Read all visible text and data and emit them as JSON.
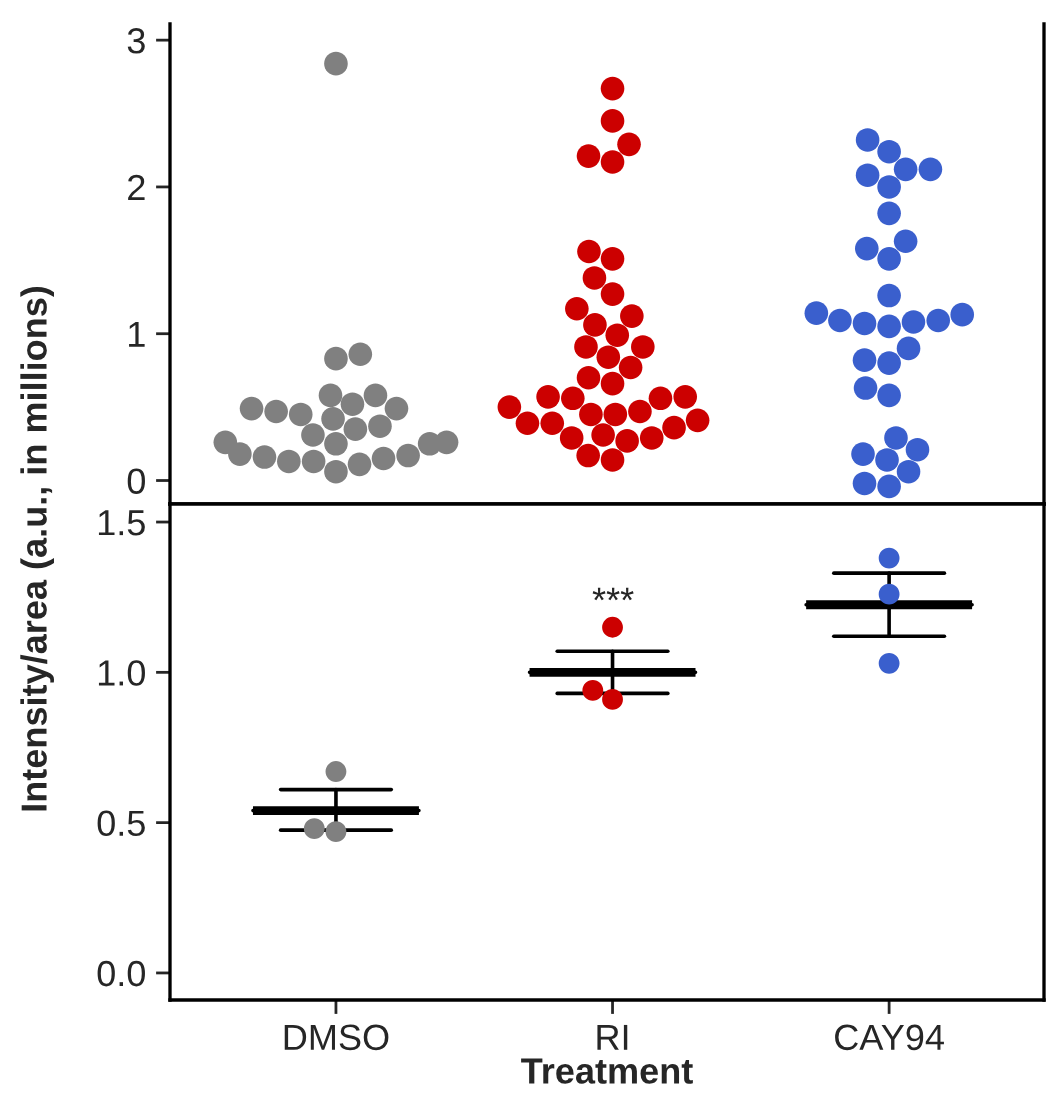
{
  "chart_data": [
    {
      "type": "scatter",
      "ylabel": "Intensity/area (a.u., in millions)",
      "categories": [
        "DMSO",
        "RI",
        "CAY94"
      ],
      "ylim": [
        -0.16,
        3.11
      ],
      "yticks": [
        0,
        1,
        2,
        3
      ],
      "tick_labels": "y",
      "marker": "circle",
      "grid": false,
      "legend": false,
      "series": [
        {
          "color": "#808080",
          "x": [
            "DMSO",
            "DMSO",
            "DMSO",
            "DMSO",
            "DMSO",
            "DMSO",
            "DMSO",
            "DMSO",
            "DMSO",
            "DMSO",
            "DMSO",
            "DMSO",
            "DMSO",
            "DMSO",
            "DMSO",
            "DMSO",
            "DMSO",
            "DMSO",
            "DMSO",
            "DMSO",
            "DMSO",
            "DMSO",
            "DMSO",
            "DMSO",
            "DMSO",
            "DMSO"
          ],
          "values": [
            2.84,
            0.83,
            0.86,
            0.45,
            0.49,
            0.37,
            0.52,
            0.49,
            0.42,
            0.25,
            0.31,
            0.18,
            0.15,
            0.13,
            0.58,
            0.35,
            0.26,
            0.25,
            0.17,
            0.11,
            0.47,
            0.58,
            0.06,
            0.26,
            0.16,
            0.13
          ]
        },
        {
          "color": "#cc0000",
          "x": [
            "RI",
            "RI",
            "RI",
            "RI",
            "RI",
            "RI",
            "RI",
            "RI",
            "RI",
            "RI",
            "RI",
            "RI",
            "RI",
            "RI",
            "RI",
            "RI",
            "RI",
            "RI",
            "RI",
            "RI",
            "RI",
            "RI",
            "RI",
            "RI",
            "RI",
            "RI",
            "RI",
            "RI",
            "RI",
            "RI",
            "RI",
            "RI",
            "RI",
            "RI",
            "RI",
            "RI",
            "RI"
          ],
          "values": [
            2.67,
            2.45,
            2.29,
            2.21,
            2.17,
            1.56,
            1.51,
            1.38,
            1.27,
            1.17,
            1.06,
            1.12,
            0.99,
            0.91,
            0.91,
            0.84,
            0.77,
            0.7,
            0.66,
            0.56,
            0.56,
            0.57,
            0.57,
            0.5,
            0.47,
            0.45,
            0.39,
            0.39,
            0.45,
            0.41,
            0.36,
            0.31,
            0.29,
            0.27,
            0.29,
            0.17,
            0.14
          ]
        },
        {
          "color": "#3a5fcd",
          "x": [
            "CAY94",
            "CAY94",
            "CAY94",
            "CAY94",
            "CAY94",
            "CAY94",
            "CAY94",
            "CAY94",
            "CAY94",
            "CAY94",
            "CAY94",
            "CAY94",
            "CAY94",
            "CAY94",
            "CAY94",
            "CAY94",
            "CAY94",
            "CAY94",
            "CAY94",
            "CAY94",
            "CAY94",
            "CAY94",
            "CAY94",
            "CAY94",
            "CAY94",
            "CAY94",
            "CAY94",
            "CAY94",
            "CAY94",
            "CAY94"
          ],
          "values": [
            2.32,
            2.24,
            2.12,
            2.12,
            2.08,
            2.0,
            1.82,
            1.63,
            1.58,
            1.51,
            1.26,
            1.14,
            1.05,
            1.08,
            1.07,
            1.09,
            1.13,
            1.09,
            0.9,
            0.8,
            0.82,
            0.63,
            0.58,
            0.29,
            0.18,
            0.06,
            -0.04,
            -0.02,
            0.21,
            0.14
          ]
        }
      ]
    },
    {
      "type": "scatter",
      "xlabel": "Treatment",
      "categories": [
        "DMSO",
        "RI",
        "CAY94"
      ],
      "ylim": [
        -0.09,
        1.56
      ],
      "yticks": [
        {
          "value": 0,
          "label": "0.0"
        },
        {
          "value": 0.5,
          "label": "0.5"
        },
        {
          "value": 1,
          "label": "1.0"
        },
        {
          "value": 1.5,
          "label": "1.5"
        }
      ],
      "marker": "circle",
      "grid": false,
      "legend": false,
      "annotations": [
        "***"
      ],
      "series": [
        {
          "color": "#808080",
          "x": [
            "DMSO",
            "DMSO",
            "DMSO"
          ],
          "values": [
            0.67,
            0.47,
            0.48
          ]
        },
        {
          "color": "#cc0000",
          "x": [
            "RI",
            "RI",
            "RI"
          ],
          "values": [
            1.15,
            0.91,
            0.94
          ]
        },
        {
          "color": "#3a5fcd",
          "x": [
            "CAY94",
            "CAY94",
            "CAY94"
          ],
          "values": [
            1.38,
            1.26,
            1.03
          ]
        },
        {
          "type": "box",
          "color": "#000000",
          "boxes": [
            {
              "low": 0.475,
              "q1": 0.54,
              "median": 0.54,
              "q3": 0.54,
              "high": 0.61
            },
            {
              "low": 0.93,
              "q1": 1.0,
              "median": 1.0,
              "q3": 1.0,
              "high": 1.07
            },
            {
              "low": 1.12,
              "q1": 1.225,
              "median": 1.225,
              "q3": 1.225,
              "high": 1.33
            }
          ]
        }
      ]
    }
  ]
}
